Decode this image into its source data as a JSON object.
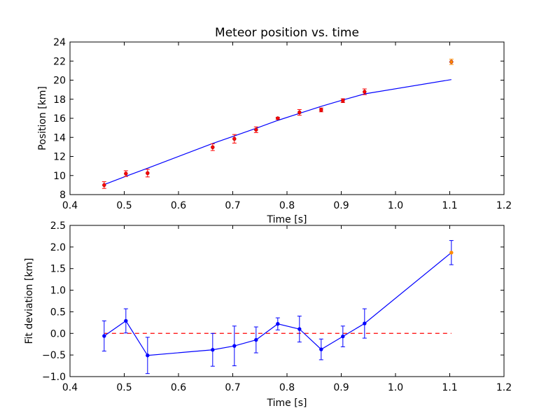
{
  "chart_data": [
    {
      "type": "scatter",
      "title": "Meteor position vs. time",
      "xlabel": "Time [s]",
      "ylabel": "Position [km]",
      "xlim": [
        0.4,
        1.2
      ],
      "ylim": [
        8,
        24
      ],
      "xticks": [
        "0.4",
        "0.5",
        "0.6",
        "0.7",
        "0.8",
        "0.9",
        "1.0",
        "1.1",
        "1.2"
      ],
      "yticks": [
        "8",
        "10",
        "12",
        "14",
        "16",
        "18",
        "20",
        "22",
        "24"
      ],
      "grid": false,
      "series": [
        {
          "kind": "fit-line",
          "color": "#0000ff",
          "x": [
            0.463,
            0.503,
            0.543,
            0.663,
            0.703,
            0.743,
            0.783,
            0.823,
            0.863,
            0.903,
            0.943,
            1.103
          ],
          "y": [
            9.05,
            9.92,
            10.77,
            13.36,
            14.15,
            14.95,
            15.78,
            16.52,
            17.25,
            17.92,
            18.56,
            20.06
          ]
        },
        {
          "kind": "points-errorbars",
          "color": "#ff0000",
          "x": [
            0.463,
            0.503,
            0.543,
            0.663,
            0.703,
            0.743,
            0.783,
            0.823,
            0.863,
            0.903,
            0.943
          ],
          "y": [
            9.0,
            10.2,
            10.25,
            12.97,
            13.85,
            14.8,
            16.0,
            16.62,
            16.88,
            17.85,
            18.78
          ],
          "err": [
            0.35,
            0.3,
            0.4,
            0.35,
            0.45,
            0.3,
            0.1,
            0.3,
            0.2,
            0.2,
            0.3
          ]
        },
        {
          "kind": "points-errorbars",
          "color": "#ff8c00",
          "x": [
            1.103
          ],
          "y": [
            21.92
          ],
          "err": [
            0.28
          ]
        }
      ]
    },
    {
      "type": "line",
      "title": "",
      "xlabel": "Time [s]",
      "ylabel": "Fit deviation [km]",
      "xlim": [
        0.4,
        1.2
      ],
      "ylim": [
        -1.0,
        2.5
      ],
      "xticks": [
        "0.4",
        "0.5",
        "0.6",
        "0.7",
        "0.8",
        "0.9",
        "1.0",
        "1.1",
        "1.2"
      ],
      "yticks": [
        "−1.0",
        "−0.5",
        "0.0",
        "0.5",
        "1.0",
        "1.5",
        "2.0",
        "2.5"
      ],
      "grid": false,
      "series": [
        {
          "kind": "zero-line",
          "color": "#ff0000",
          "style": "dashed",
          "x": [
            0.463,
            1.103
          ],
          "y": [
            0.0,
            0.0
          ]
        },
        {
          "kind": "line-errorbars",
          "color": "#0000ff",
          "x": [
            0.463,
            0.503,
            0.543,
            0.663,
            0.703,
            0.743,
            0.783,
            0.823,
            0.863,
            0.903,
            0.943,
            1.103
          ],
          "y": [
            -0.06,
            0.29,
            -0.51,
            -0.38,
            -0.29,
            -0.15,
            0.22,
            0.1,
            -0.37,
            -0.07,
            0.23,
            1.87
          ],
          "err": [
            0.35,
            0.28,
            0.42,
            0.38,
            0.46,
            0.3,
            0.14,
            0.3,
            0.24,
            0.24,
            0.34,
            0.28
          ],
          "marker_colors": [
            "#0000ff",
            "#0000ff",
            "#0000ff",
            "#0000ff",
            "#0000ff",
            "#0000ff",
            "#0000ff",
            "#0000ff",
            "#0000ff",
            "#0000ff",
            "#0000ff",
            "#ff8c00"
          ]
        }
      ]
    }
  ]
}
